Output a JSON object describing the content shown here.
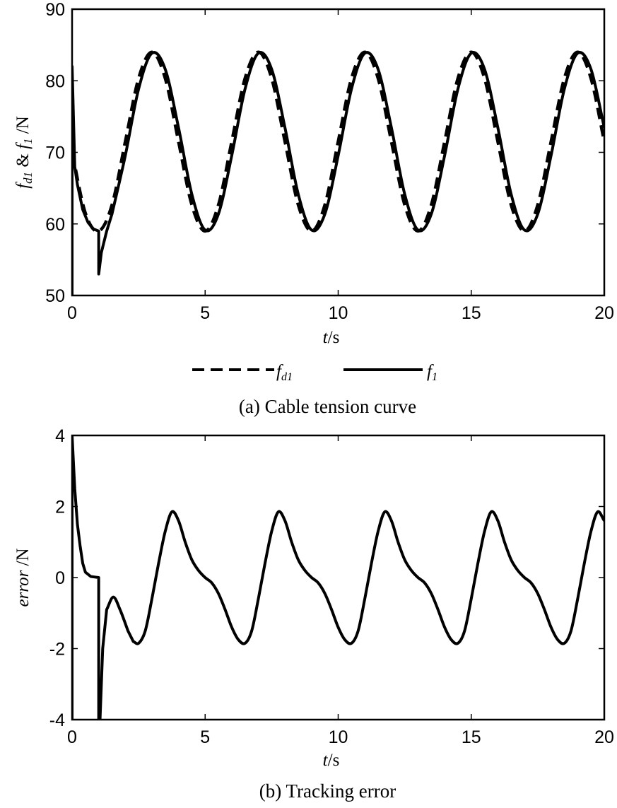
{
  "chart_data": [
    {
      "type": "line",
      "id": "tension",
      "caption": "(a) Cable tension curve",
      "xlabel": {
        "italic": "t",
        "rest": "/s"
      },
      "ylabel": [
        {
          "text": "f",
          "style": "italic"
        },
        {
          "text": "d1",
          "style": "sub"
        },
        {
          "text": " & ",
          "style": "normal"
        },
        {
          "text": "f",
          "style": "italic"
        },
        {
          "text": "1",
          "style": "sub"
        },
        {
          "text": " /N",
          "style": "normal"
        }
      ],
      "xlim": [
        0,
        20
      ],
      "ylim": [
        50,
        90
      ],
      "xticks": [
        0,
        5,
        10,
        15,
        20
      ],
      "xtick_labels": [
        "0",
        "5",
        "10",
        "15",
        "20"
      ],
      "yticks": [
        50,
        60,
        70,
        80,
        90
      ],
      "ytick_labels": [
        "50",
        "60",
        "70",
        "80",
        "90"
      ],
      "grid": false,
      "legend_placement": "bottom-center",
      "series": [
        {
          "name": "f_d1",
          "legend_main": "f",
          "legend_sub": "d1",
          "dash": "dashed",
          "color": "#000000",
          "x": [
            0,
            0.5,
            1,
            1.5,
            2,
            2.5,
            3,
            3.5,
            4,
            4.5,
            5,
            5.5,
            6,
            6.5,
            7,
            7.5,
            8,
            8.5,
            9,
            9.5,
            10,
            10.5,
            11,
            11.5,
            12,
            12.5,
            13,
            13.5,
            14,
            14.5,
            15,
            15.5,
            16,
            16.5,
            17,
            17.5,
            18,
            18.5,
            19,
            19.5,
            20
          ],
          "y": [
            70,
            61.5,
            59,
            62.66,
            71.5,
            80.34,
            84,
            80.34,
            71.5,
            62.66,
            59,
            62.66,
            71.5,
            80.34,
            84,
            80.34,
            71.5,
            62.66,
            59,
            62.66,
            71.5,
            80.34,
            84,
            80.34,
            71.5,
            62.66,
            59,
            62.66,
            71.5,
            80.34,
            84,
            80.34,
            71.5,
            62.66,
            59,
            62.66,
            71.5,
            80.34,
            84,
            80.34,
            71.5
          ]
        },
        {
          "name": "f_1",
          "legend_main": "f",
          "legend_sub": "1",
          "dash": "solid",
          "color": "#000000",
          "x": [
            0,
            0.001,
            0.1,
            0.2,
            0.4,
            0.6,
            0.8,
            1.0,
            1.001,
            1.1,
            1.3,
            1.5,
            2,
            2.5,
            3,
            3.5,
            4,
            4.5,
            5,
            5.5,
            6,
            6.5,
            7,
            7.5,
            8,
            8.5,
            9,
            9.5,
            10,
            10.5,
            11,
            11.5,
            12,
            12.5,
            13,
            13.5,
            14,
            14.5,
            15,
            15.5,
            16,
            16.5,
            17,
            17.5,
            18,
            18.5,
            19,
            19.5,
            20
          ],
          "y": [
            50,
            82,
            68,
            65.5,
            62,
            60.2,
            59.3,
            59,
            53,
            56,
            59,
            61.39,
            69.55,
            78.85,
            83.85,
            81.61,
            73.45,
            64.15,
            59.15,
            61.39,
            69.55,
            78.85,
            83.85,
            81.61,
            73.45,
            64.15,
            59.15,
            61.39,
            69.55,
            78.85,
            83.85,
            81.61,
            73.45,
            64.15,
            59.15,
            61.39,
            69.55,
            78.85,
            83.85,
            81.61,
            73.45,
            64.15,
            59.15,
            61.39,
            69.55,
            78.85,
            83.85,
            81.61,
            73.45
          ]
        }
      ]
    },
    {
      "type": "line",
      "id": "error",
      "caption": "(b) Tracking error",
      "xlabel": {
        "italic": "t",
        "rest": "/s"
      },
      "ylabel": [
        {
          "text": "error",
          "style": "italic"
        },
        {
          "text": " /N",
          "style": "normal"
        }
      ],
      "xlim": [
        0,
        20
      ],
      "ylim": [
        -4,
        4
      ],
      "xticks": [
        0,
        5,
        10,
        15,
        20
      ],
      "xtick_labels": [
        "0",
        "5",
        "10",
        "15",
        "20"
      ],
      "yticks": [
        -4,
        -2,
        0,
        2,
        4
      ],
      "ytick_labels": [
        "-4",
        "-2",
        "0",
        "2",
        "4"
      ],
      "grid": false,
      "series": [
        {
          "name": "error",
          "dash": "solid",
          "color": "#000000",
          "x": [
            0,
            0,
            0.1,
            0.2,
            0.3,
            0.4,
            0.5,
            0.7,
            1.0,
            1.0,
            1.05,
            1.15,
            1.3,
            1.55,
            1.8,
            2.1,
            2.3,
            2.5,
            2.75,
            3,
            3.25,
            3.5,
            3.75,
            4,
            4.25,
            4.5,
            4.75,
            5,
            5.25,
            5.5,
            5.75,
            6,
            6.25,
            6.5,
            6.75,
            7,
            7.25,
            7.5,
            7.75,
            8,
            8.25,
            8.5,
            8.75,
            9,
            9.25,
            9.5,
            9.75,
            10,
            10.25,
            10.5,
            10.75,
            11,
            11.25,
            11.5,
            11.75,
            12,
            12.25,
            12.5,
            12.75,
            13,
            13.25,
            13.5,
            13.75,
            14,
            14.25,
            14.5,
            14.75,
            15,
            15.25,
            15.5,
            15.75,
            16,
            16.25,
            16.5,
            16.75,
            17,
            17.25,
            17.5,
            17.75,
            18,
            18.25,
            18.5,
            18.75,
            19,
            19.25,
            19.5,
            19.75,
            20
          ],
          "y": [
            -4,
            4,
            2.5,
            1.5,
            0.9,
            0.4,
            0.15,
            0.03,
            0,
            -4.2,
            -4,
            -2,
            -0.9,
            -0.55,
            -0.9,
            -1.5,
            -1.8,
            -1.85,
            -1.5,
            -0.6,
            0.4,
            1.3,
            1.85,
            1.6,
            1.0,
            0.5,
            0.2,
            0.0,
            -0.15,
            -0.45,
            -0.9,
            -1.4,
            -1.75,
            -1.85,
            -1.5,
            -0.6,
            0.4,
            1.3,
            1.85,
            1.6,
            1.0,
            0.5,
            0.2,
            0.0,
            -0.15,
            -0.45,
            -0.9,
            -1.4,
            -1.75,
            -1.85,
            -1.5,
            -0.6,
            0.4,
            1.3,
            1.85,
            1.6,
            1.0,
            0.5,
            0.2,
            0.0,
            -0.15,
            -0.45,
            -0.9,
            -1.4,
            -1.75,
            -1.85,
            -1.5,
            -0.6,
            0.4,
            1.3,
            1.85,
            1.6,
            1.0,
            0.5,
            0.2,
            0.0,
            -0.15,
            -0.45,
            -0.9,
            -1.4,
            -1.75,
            -1.85,
            -1.5,
            -0.6,
            0.4,
            1.3,
            1.85,
            1.6
          ]
        }
      ]
    }
  ]
}
